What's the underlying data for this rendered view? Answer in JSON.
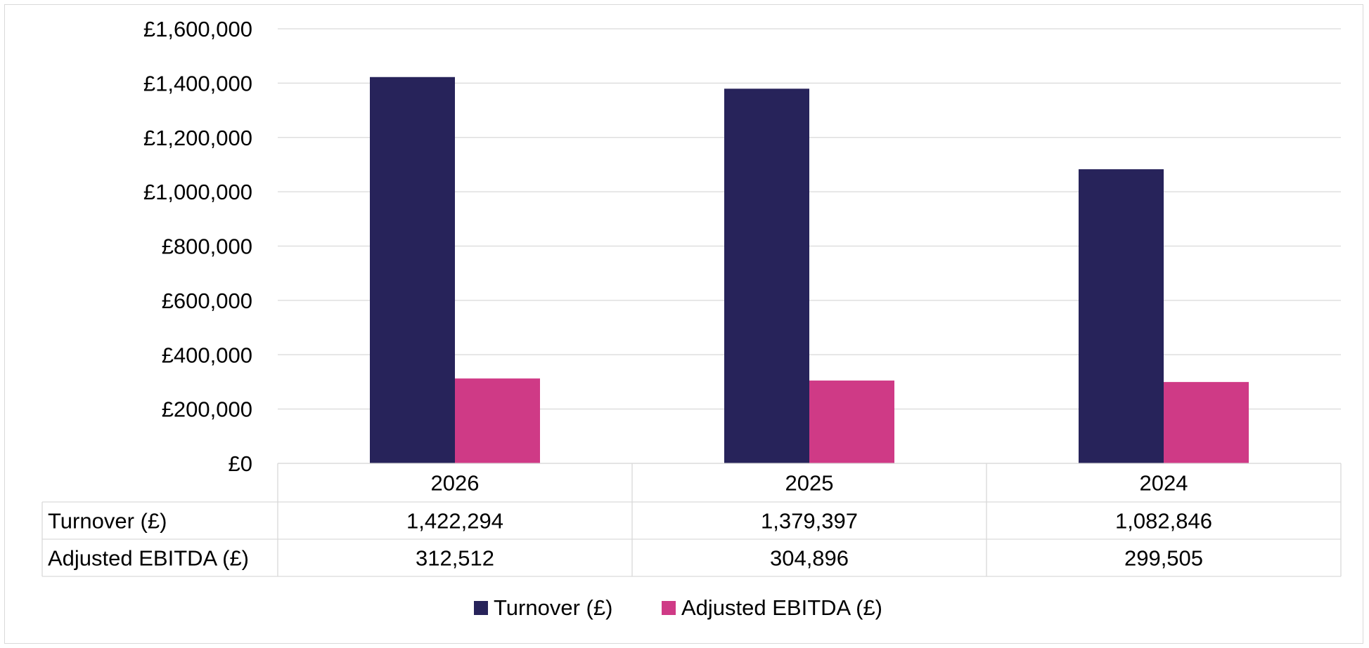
{
  "chart_data": {
    "type": "bar",
    "categories": [
      "2026",
      "2025",
      "2024"
    ],
    "series": [
      {
        "name": "Turnover (£)",
        "values": [
          1422294,
          1379397,
          1082846
        ],
        "color": "#27235a"
      },
      {
        "name": "Adjusted EBITDA (£)",
        "values": [
          312512,
          304896,
          299505
        ],
        "color": "#cf3a86"
      }
    ],
    "table_values": [
      [
        "1,422,294",
        "1,379,397",
        "1,082,846"
      ],
      [
        "312,512",
        "304,896",
        "299,505"
      ]
    ],
    "y_ticks": [
      "£0",
      "£200,000",
      "£400,000",
      "£600,000",
      "£800,000",
      "£1,000,000",
      "£1,200,000",
      "£1,400,000",
      "£1,600,000"
    ],
    "ylim": [
      0,
      1600000
    ],
    "y_step": 200000,
    "grid": true,
    "legend_position": "bottom",
    "title": "",
    "xlabel": "",
    "ylabel": ""
  }
}
